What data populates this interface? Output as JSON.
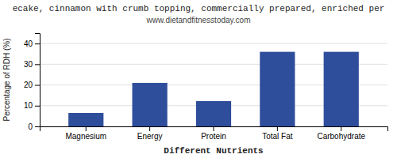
{
  "chart_data": {
    "type": "bar",
    "title": "ecake, cinnamon with crumb topping, commercially prepared, enriched per",
    "subtitle": "www.dietandfitnesstoday.com",
    "categories": [
      "Magnesium",
      "Energy",
      "Protein",
      "Total Fat",
      "Carbohydrate"
    ],
    "values": [
      6.5,
      21.0,
      12.2,
      36.0,
      36.0
    ],
    "color": "#2e4d9b",
    "xlabel": "Different Nutrients",
    "ylabel": "Percentage of RDH (%)",
    "ylim": [
      0,
      45
    ],
    "yticks": [
      0,
      10,
      20,
      30,
      40
    ],
    "grid": true
  }
}
